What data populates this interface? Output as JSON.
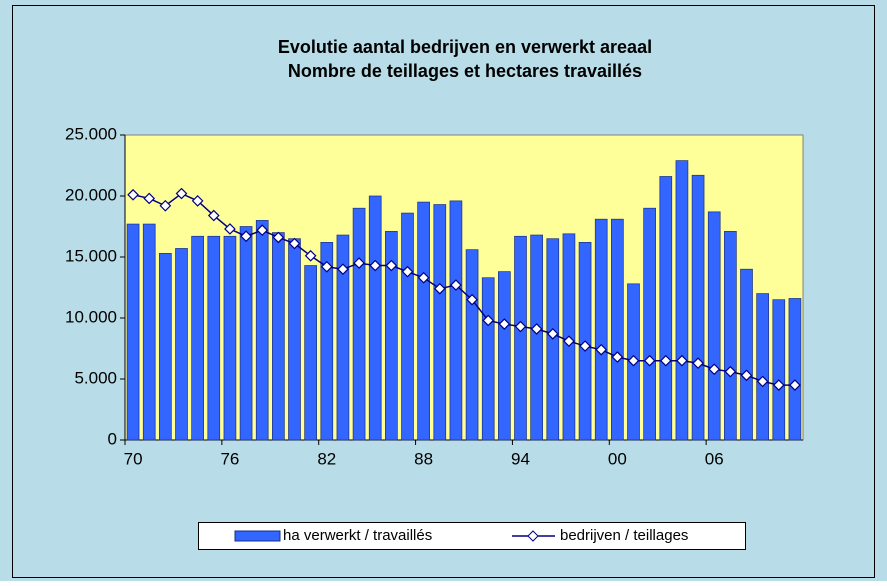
{
  "chart_data": {
    "type": "bar-line",
    "title": "Evolutie aantal bedrijven en verwerkt  areaal",
    "subtitle": "Nombre de teillages et hectares travaillés",
    "categories": [
      "70",
      null,
      null,
      null,
      null,
      null,
      "76",
      null,
      null,
      null,
      null,
      null,
      "82",
      null,
      null,
      null,
      null,
      null,
      "88",
      null,
      null,
      null,
      null,
      null,
      "94",
      null,
      null,
      null,
      null,
      null,
      "00",
      null,
      null,
      null,
      null,
      null,
      "06",
      null,
      null,
      null,
      null,
      null
    ],
    "series": [
      {
        "name": "ha verwerkt / travaillés",
        "type": "bar",
        "color": "#3366ff",
        "values": [
          17700,
          17700,
          15300,
          15700,
          16700,
          16700,
          16700,
          17500,
          18000,
          17000,
          16500,
          14300,
          16200,
          16800,
          19000,
          20000,
          17100,
          18600,
          19500,
          19300,
          19600,
          15600,
          13300,
          13800,
          16700,
          16800,
          16500,
          16900,
          16200,
          18100,
          18100,
          12800,
          19000,
          21600,
          22900,
          21700,
          18700,
          17100,
          14000,
          12000,
          11500,
          11600
        ]
      },
      {
        "name": "bedrijven / teillages",
        "type": "line",
        "color": "#000080",
        "values": [
          20100,
          19800,
          19200,
          20200,
          19600,
          18400,
          17300,
          16700,
          17200,
          16600,
          16100,
          15100,
          14200,
          14000,
          14500,
          14300,
          14300,
          13800,
          13300,
          12400,
          12700,
          11500,
          9800,
          9500,
          9300,
          9100,
          8700,
          8100,
          7700,
          7400,
          6800,
          6500,
          6500,
          6500,
          6500,
          6300,
          5800,
          5600,
          5300,
          4800,
          4500,
          4500
        ]
      }
    ],
    "ylim": [
      0,
      25000
    ],
    "yticks": [
      0,
      {
        "value": 5000,
        "label": "5.000"
      },
      {
        "value": 10000,
        "label": "10.000"
      },
      {
        "value": 15000,
        "label": "15.000"
      },
      {
        "value": 20000,
        "label": "20.000"
      },
      {
        "value": 25000,
        "label": "25.000"
      }
    ],
    "grid": false,
    "legend": "bottom"
  }
}
